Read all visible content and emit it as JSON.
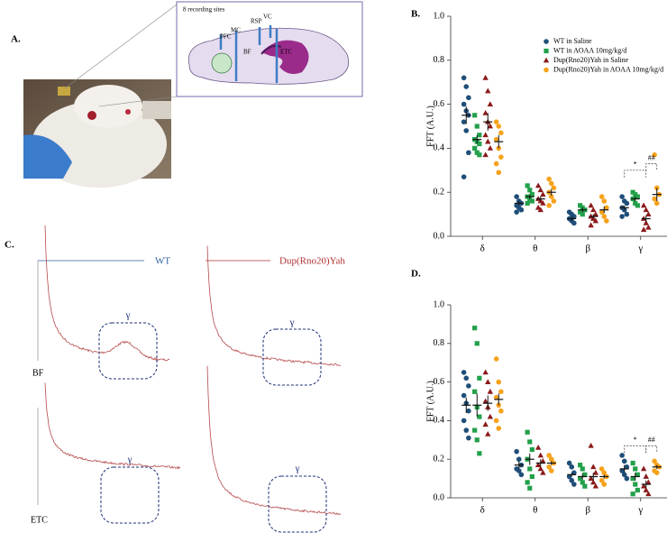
{
  "panels": {
    "a": {
      "label": "A.",
      "inset_title": "8 recording sites",
      "regions": [
        "PFC",
        "MC",
        "RSP",
        "VC",
        "BF",
        "ETC"
      ]
    },
    "c": {
      "label": "C.",
      "legend": [
        "WT",
        "Dup(Rno20)Yah"
      ],
      "rows": [
        "BF",
        "ETC"
      ],
      "marker": "γ"
    }
  },
  "chart_data": [
    {
      "type": "dotplot",
      "panel_label": "B.",
      "ylabel": "FFT (A.U.)",
      "categories": [
        "δ",
        "θ",
        "β",
        "γ"
      ],
      "ylim": [
        0,
        1
      ],
      "yticks": [
        {
          "value": 0,
          "label": "0.0"
        },
        0.2,
        0.4,
        0.6,
        0.8,
        {
          "value": 1,
          "label": "1.0"
        }
      ],
      "annotations": [
        "*",
        "##"
      ],
      "legend": true,
      "series": [
        {
          "name": "WT in Saline",
          "color": "#1f4e79",
          "marker": "circle",
          "values": [
            [
              0.72,
              0.68,
              0.63,
              0.6,
              0.57,
              0.55,
              0.52,
              0.48,
              0.38,
              0.27
            ],
            [
              0.18,
              0.16,
              0.15,
              0.14,
              0.13,
              0.12,
              0.11
            ],
            [
              0.11,
              0.1,
              0.09,
              0.08,
              0.07,
              0.06
            ],
            [
              0.18,
              0.16,
              0.15,
              0.13,
              0.12,
              0.1,
              0.09
            ]
          ],
          "means": [
            0.55,
            0.15,
            0.08,
            0.13
          ],
          "errors": [
            0.04,
            0.01,
            0.01,
            0.01
          ]
        },
        {
          "name": "WT in AOAA 10mg/kg/d",
          "color": "#22a04a",
          "marker": "square",
          "values": [
            [
              0.55,
              0.5,
              0.46,
              0.44,
              0.43,
              0.42,
              0.4,
              0.38,
              0.37
            ],
            [
              0.23,
              0.21,
              0.19,
              0.18,
              0.17,
              0.16,
              0.15
            ],
            [
              0.14,
              0.13,
              0.12,
              0.11,
              0.1
            ],
            [
              0.2,
              0.19,
              0.18,
              0.17,
              0.15,
              0.14
            ]
          ],
          "means": [
            0.44,
            0.18,
            0.12,
            0.17
          ],
          "errors": [
            0.02,
            0.01,
            0.01,
            0.01
          ]
        },
        {
          "name": "Dup(Rno20)Yah in Saline",
          "color": "#8b1a1a",
          "marker": "triangle",
          "values": [
            [
              0.72,
              0.66,
              0.6,
              0.56,
              0.52,
              0.5,
              0.46,
              0.43,
              0.4,
              0.37
            ],
            [
              0.23,
              0.21,
              0.19,
              0.17,
              0.16,
              0.15,
              0.13,
              0.12
            ],
            [
              0.14,
              0.12,
              0.1,
              0.09,
              0.08,
              0.07,
              0.05
            ],
            [
              0.14,
              0.12,
              0.1,
              0.08,
              0.06,
              0.04,
              0.03
            ]
          ],
          "means": [
            0.52,
            0.17,
            0.09,
            0.08
          ],
          "errors": [
            0.04,
            0.01,
            0.01,
            0.015
          ]
        },
        {
          "name": "Dup(Rno20)Yah in AOAA 10mg/kg/d",
          "color": "#f7a21b",
          "marker": "circle",
          "values": [
            [
              0.52,
              0.5,
              0.47,
              0.44,
              0.4,
              0.36,
              0.33,
              0.29
            ],
            [
              0.26,
              0.24,
              0.22,
              0.2,
              0.18,
              0.16,
              0.14
            ],
            [
              0.18,
              0.16,
              0.13,
              0.11,
              0.09,
              0.07
            ],
            [
              0.37,
              0.22,
              0.19,
              0.17,
              0.15
            ]
          ],
          "means": [
            0.43,
            0.2,
            0.12,
            0.19
          ],
          "errors": [
            0.03,
            0.015,
            0.015,
            0.03
          ]
        }
      ]
    },
    {
      "type": "dotplot",
      "panel_label": "D.",
      "ylabel": "FFT (A.U.)",
      "categories": [
        "δ",
        "θ",
        "β",
        "γ"
      ],
      "ylim": [
        0,
        1
      ],
      "yticks": [
        {
          "value": 0,
          "label": "0.0"
        },
        0.2,
        0.4,
        0.6,
        0.8,
        {
          "value": 1,
          "label": "1.0"
        }
      ],
      "annotations": [
        "*",
        "##"
      ],
      "legend": false,
      "series": [
        {
          "name": "WT in Saline",
          "color": "#1f4e79",
          "marker": "circle",
          "values": [
            [
              0.65,
              0.62,
              0.58,
              0.53,
              0.49,
              0.45,
              0.4,
              0.35,
              0.31
            ],
            [
              0.24,
              0.2,
              0.17,
              0.15,
              0.14,
              0.12
            ],
            [
              0.18,
              0.16,
              0.13,
              0.11,
              0.09,
              0.07
            ],
            [
              0.22,
              0.19,
              0.16,
              0.14,
              0.12,
              0.1
            ]
          ],
          "means": [
            0.48,
            0.17,
            0.12,
            0.15
          ],
          "errors": [
            0.04,
            0.02,
            0.01,
            0.02
          ]
        },
        {
          "name": "WT in AOAA 10mg/kg/d",
          "color": "#22a04a",
          "marker": "square",
          "values": [
            [
              0.88,
              0.8,
              0.62,
              0.55,
              0.47,
              0.42,
              0.35,
              0.3,
              0.23
            ],
            [
              0.34,
              0.29,
              0.25,
              0.2,
              0.15,
              0.11,
              0.08,
              0.05
            ],
            [
              0.17,
              0.15,
              0.12,
              0.1,
              0.08,
              0.06
            ],
            [
              0.18,
              0.15,
              0.12,
              0.1,
              0.07,
              0.04,
              0.02
            ]
          ],
          "means": [
            0.48,
            0.2,
            0.11,
            0.11
          ],
          "errors": [
            0.06,
            0.03,
            0.015,
            0.02
          ]
        },
        {
          "name": "Dup(Rno20)Yah in Saline",
          "color": "#8b1a1a",
          "marker": "triangle",
          "values": [
            [
              0.65,
              0.6,
              0.55,
              0.5,
              0.47,
              0.42,
              0.38,
              0.33
            ],
            [
              0.26,
              0.22,
              0.19,
              0.17,
              0.15,
              0.13
            ],
            [
              0.27,
              0.16,
              0.13,
              0.1,
              0.08,
              0.06
            ],
            [
              0.15,
              0.11,
              0.08,
              0.06,
              0.04,
              0.02
            ]
          ],
          "means": [
            0.49,
            0.18,
            0.11,
            0.07
          ],
          "errors": [
            0.04,
            0.02,
            0.02,
            0.02
          ]
        },
        {
          "name": "Dup(Rno20)Yah in AOAA 10mg/kg/d",
          "color": "#f7a21b",
          "marker": "circle",
          "values": [
            [
              0.72,
              0.6,
              0.55,
              0.52,
              0.48,
              0.45,
              0.4,
              0.36
            ],
            [
              0.22,
              0.2,
              0.18,
              0.16,
              0.14
            ],
            [
              0.15,
              0.13,
              0.11,
              0.09,
              0.07
            ],
            [
              0.19,
              0.17,
              0.16,
              0.14,
              0.13
            ]
          ],
          "means": [
            0.51,
            0.18,
            0.11,
            0.16
          ],
          "errors": [
            0.03,
            0.01,
            0.01,
            0.01
          ]
        }
      ]
    }
  ]
}
